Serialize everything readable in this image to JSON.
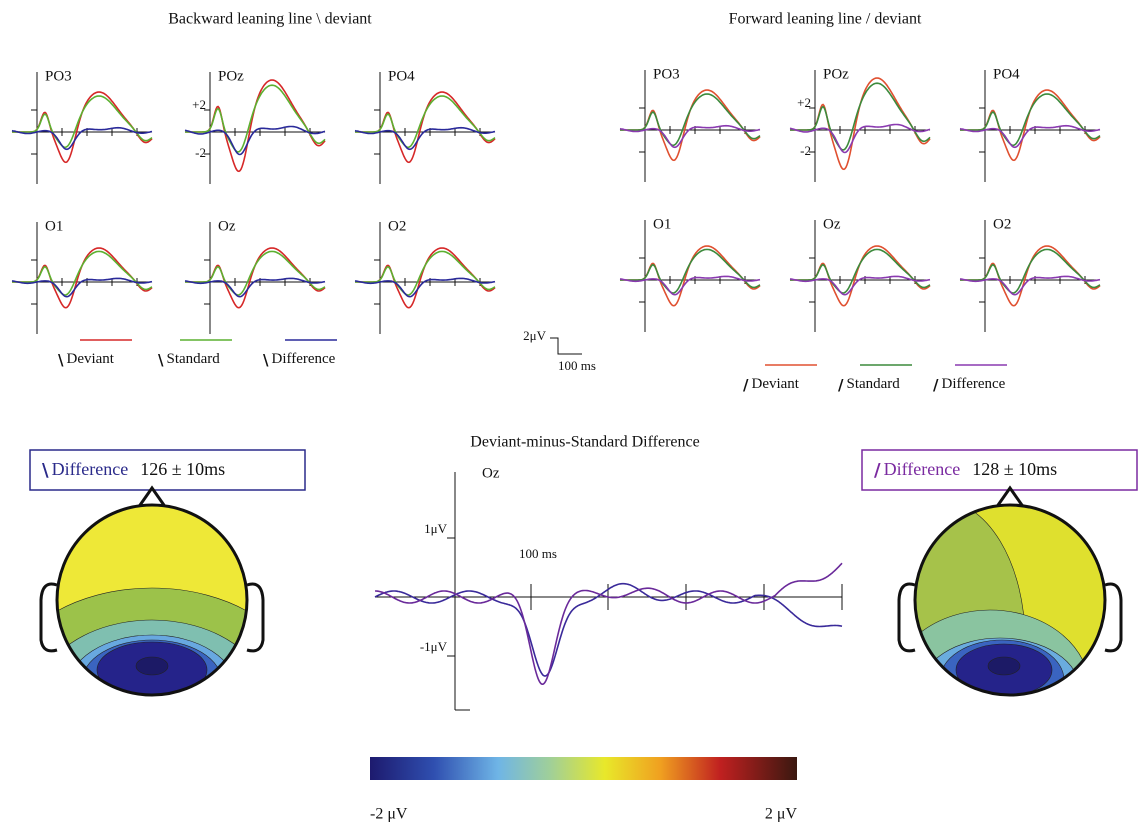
{
  "left_panel": {
    "title": "Backward leaning line \\ deviant",
    "electrodes": [
      "PO3",
      "POz",
      "PO4",
      "O1",
      "Oz",
      "O2"
    ],
    "y_labels": [
      "+2",
      "-2"
    ],
    "legend": [
      {
        "mark": "\\",
        "label": "Deviant"
      },
      {
        "mark": "\\",
        "label": "Standard"
      },
      {
        "mark": "\\",
        "label": "Difference"
      }
    ]
  },
  "right_panel": {
    "title": "Forward leaning line / deviant",
    "electrodes": [
      "PO3",
      "POz",
      "PO4",
      "O1",
      "Oz",
      "O2"
    ],
    "y_labels": [
      "+2",
      "-2"
    ],
    "legend": [
      {
        "mark": "/",
        "label": "Deviant"
      },
      {
        "mark": "/",
        "label": "Standard"
      },
      {
        "mark": "/",
        "label": "Difference"
      }
    ]
  },
  "scale_bar": {
    "amplitude": "2μV",
    "time": "100 ms"
  },
  "left_map": {
    "mark": "\\",
    "label": "Difference",
    "latency": "126 ± 10ms"
  },
  "right_map": {
    "mark": "/",
    "label": "Difference",
    "latency": "128 ± 10ms"
  },
  "difference_plot": {
    "title": "Deviant-minus-Standard Difference",
    "electrode": "Oz",
    "y_labels": [
      "1μV",
      "-1μV"
    ],
    "time_label": "100 ms"
  },
  "colorbar": {
    "min_label": "-2 μV",
    "max_label": "2 μV"
  }
}
